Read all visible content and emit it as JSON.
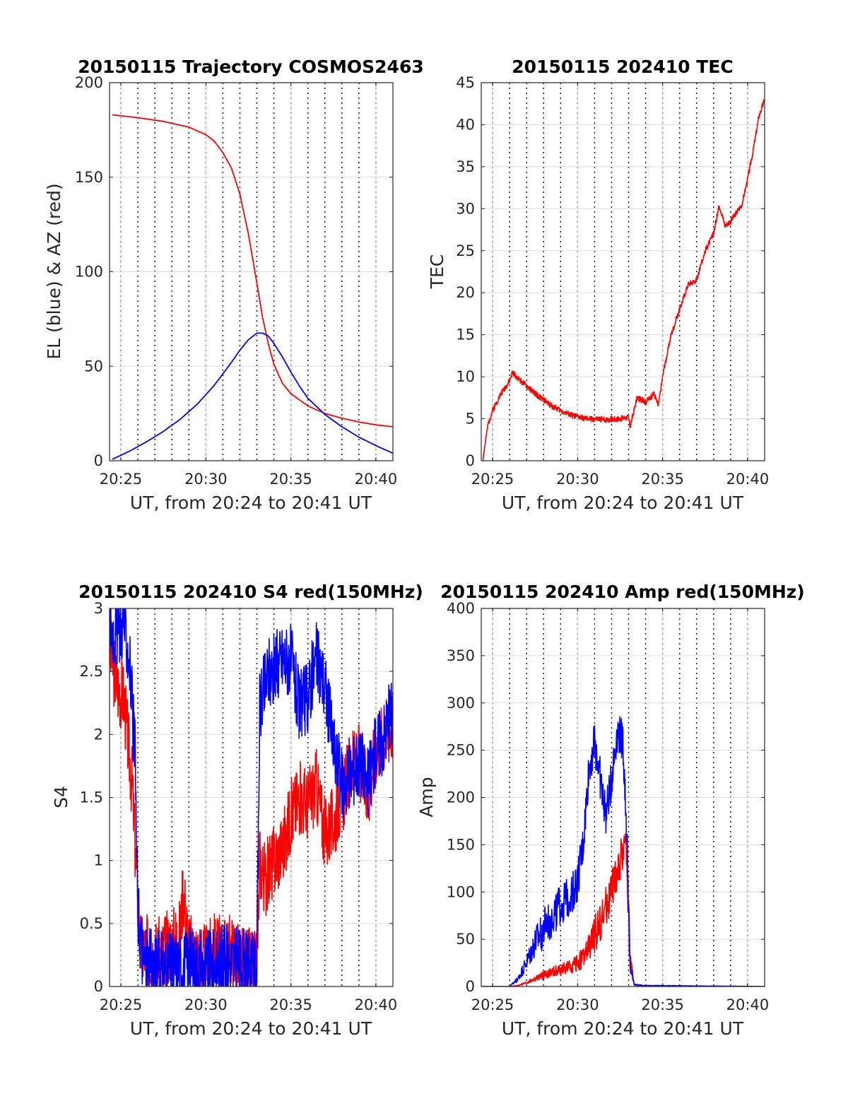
{
  "colors": {
    "el": "#0000ff",
    "az": "#ff0000",
    "tec": "#ff0000",
    "red_series": "#ff0000",
    "blue_series": "#0000ff",
    "axis": "#262626"
  },
  "chart_data": [
    {
      "type": "line",
      "title": "20150115 Trajectory COSMOS2463",
      "xlabel": "UT, from 20:24 to 20:41 UT",
      "ylabel": "EL (blue) & AZ (red)",
      "xlim": [
        "20:24:20",
        "20:41:00"
      ],
      "ylim": [
        0,
        200
      ],
      "xticks": [
        "20:25",
        "20:30",
        "20:35",
        "20:40"
      ],
      "yticks": [
        0,
        50,
        100,
        150,
        200
      ],
      "grid": {
        "major": true,
        "x_minor_dotted_every_min": true
      },
      "series": [
        {
          "name": "AZ",
          "color": "red",
          "x": [
            "20:24:30",
            "20:26:00",
            "20:27:30",
            "20:29:00",
            "20:30:00",
            "20:30:30",
            "20:31:00",
            "20:31:30",
            "20:32:00",
            "20:32:30",
            "20:33:00",
            "20:33:20",
            "20:33:40",
            "20:34:00",
            "20:34:30",
            "20:35:00",
            "20:36:00",
            "20:37:00",
            "20:38:00",
            "20:39:00",
            "20:40:00",
            "20:41:00"
          ],
          "values": [
            183,
            181.5,
            179.5,
            176.5,
            172.5,
            169,
            163,
            155,
            141,
            120,
            94,
            76,
            62,
            51,
            41,
            35.5,
            29,
            25,
            22.5,
            20.5,
            19,
            18
          ]
        },
        {
          "name": "EL",
          "color": "blue",
          "x": [
            "20:24:30",
            "20:25:30",
            "20:26:30",
            "20:27:30",
            "20:28:30",
            "20:29:30",
            "20:30:30",
            "20:31:30",
            "20:32:00",
            "20:32:30",
            "20:33:00",
            "20:33:20",
            "20:33:40",
            "20:34:00",
            "20:34:30",
            "20:35:00",
            "20:35:30",
            "20:36:00",
            "20:37:00",
            "20:38:00",
            "20:39:00",
            "20:40:00",
            "20:41:00"
          ],
          "values": [
            0.8,
            5,
            10,
            15.5,
            22,
            30,
            40,
            52,
            58.5,
            64,
            67.5,
            67.5,
            66,
            62,
            55,
            47,
            39.5,
            33,
            24.5,
            18,
            12.5,
            8,
            4
          ]
        }
      ]
    },
    {
      "type": "line",
      "title": "20150115 202410 TEC",
      "xlabel": "UT, from 20:24 to 20:41 UT",
      "ylabel": "TEC",
      "xlim": [
        "20:24:20",
        "20:41:00"
      ],
      "ylim": [
        0,
        45
      ],
      "xticks": [
        "20:25",
        "20:30",
        "20:35",
        "20:40"
      ],
      "yticks": [
        0,
        5,
        10,
        15,
        20,
        25,
        30,
        35,
        40,
        45
      ],
      "grid": {
        "major": true,
        "x_minor_dotted_every_min": true
      },
      "series": [
        {
          "name": "TEC",
          "color": "red",
          "x": [
            "20:24:25",
            "20:24:45",
            "20:25:00",
            "20:25:30",
            "20:26:00",
            "20:26:10",
            "20:26:40",
            "20:27:30",
            "20:28:30",
            "20:29:30",
            "20:30:30",
            "20:31:30",
            "20:32:30",
            "20:33:00",
            "20:33:05",
            "20:33:30",
            "20:34:00",
            "20:34:30",
            "20:34:45",
            "20:35:00",
            "20:35:30",
            "20:36:00",
            "20:36:30",
            "20:37:00",
            "20:37:30",
            "20:38:00",
            "20:38:20",
            "20:38:40",
            "20:39:00",
            "20:39:20",
            "20:39:40",
            "20:40:00",
            "20:40:20",
            "20:40:40",
            "20:41:00"
          ],
          "values": [
            0,
            4.5,
            6,
            8,
            9.5,
            10.5,
            9.5,
            8,
            6.5,
            5.5,
            5,
            4.9,
            5,
            5.2,
            4,
            7.5,
            7,
            8,
            6.5,
            10,
            15,
            18,
            21,
            21.5,
            25,
            27,
            30.5,
            28,
            28.5,
            29.5,
            30.5,
            33.5,
            37,
            41,
            43
          ]
        }
      ]
    },
    {
      "type": "line",
      "title": "20150115 202410 S4 red(150MHz)",
      "xlabel": "UT, from 20:24 to 20:41 UT",
      "ylabel": "S4",
      "xlim": [
        "20:24:20",
        "20:41:00"
      ],
      "ylim": [
        0,
        3
      ],
      "xticks": [
        "20:25",
        "20:30",
        "20:35",
        "20:40"
      ],
      "yticks": [
        0,
        0.5,
        1,
        1.5,
        2,
        2.5,
        3
      ],
      "grid": {
        "major": true,
        "x_minor_dotted_every_min": true
      },
      "series": [
        {
          "name": "red (150MHz)",
          "color": "red",
          "x": [
            "20:24:20",
            "20:24:45",
            "20:25:10",
            "20:25:40",
            "20:25:55",
            "20:26:10",
            "20:26:40",
            "20:27:20",
            "20:28:00",
            "20:28:30",
            "20:28:40",
            "20:29:00",
            "20:29:30",
            "20:30:00",
            "20:30:30",
            "20:31:00",
            "20:31:30",
            "20:32:00",
            "20:32:30",
            "20:33:00",
            "20:33:10",
            "20:33:30",
            "20:34:00",
            "20:34:30",
            "20:35:00",
            "20:35:30",
            "20:36:00",
            "20:36:30",
            "20:37:00",
            "20:37:30",
            "20:38:00",
            "20:38:30",
            "20:39:00",
            "20:39:30",
            "20:40:00",
            "20:40:30",
            "20:41:00"
          ],
          "values": [
            2.7,
            2.4,
            2.3,
            1.6,
            0.9,
            0.3,
            0.28,
            0.25,
            0.35,
            0.42,
            0.8,
            0.3,
            0.25,
            0.2,
            0.3,
            0.25,
            0.3,
            0.2,
            0.18,
            0.15,
            1.0,
            0.85,
            1.0,
            1.1,
            1.35,
            1.5,
            1.45,
            1.6,
            1.2,
            1.3,
            1.5,
            1.7,
            1.8,
            1.5,
            1.9,
            2.0,
            2.1
          ]
        },
        {
          "name": "blue",
          "color": "blue",
          "x": [
            "20:24:20",
            "20:24:45",
            "20:25:10",
            "20:25:30",
            "20:25:50",
            "20:26:00",
            "20:26:20",
            "20:27:00",
            "20:28:00",
            "20:29:00",
            "20:30:00",
            "20:31:00",
            "20:32:00",
            "20:33:00",
            "20:33:10",
            "20:33:40",
            "20:34:00",
            "20:34:30",
            "20:35:00",
            "20:35:30",
            "20:36:00",
            "20:36:30",
            "20:37:00",
            "20:37:30",
            "20:38:00",
            "20:38:30",
            "20:39:00",
            "20:39:30",
            "20:40:00",
            "20:40:30",
            "20:41:00"
          ],
          "values": [
            2.9,
            2.8,
            2.9,
            2.6,
            1.8,
            0.6,
            0.2,
            0.15,
            0.15,
            0.18,
            0.15,
            0.2,
            0.18,
            0.12,
            2.2,
            2.5,
            2.5,
            2.6,
            2.6,
            2.2,
            2.3,
            2.6,
            2.4,
            1.9,
            1.6,
            1.7,
            1.8,
            1.6,
            1.9,
            2.0,
            2.2
          ]
        }
      ]
    },
    {
      "type": "line",
      "title": "20150115 202410 Amp red(150MHz)",
      "xlabel": "UT, from 20:24 to 20:41 UT",
      "ylabel": "Amp",
      "xlim": [
        "20:24:20",
        "20:41:00"
      ],
      "ylim": [
        0,
        400
      ],
      "xticks": [
        "20:25",
        "20:30",
        "20:35",
        "20:40"
      ],
      "yticks": [
        0,
        50,
        100,
        150,
        200,
        250,
        300,
        350,
        400
      ],
      "grid": {
        "major": true,
        "x_minor_dotted_every_min": true
      },
      "series": [
        {
          "name": "red (150MHz)",
          "color": "red",
          "x": [
            "20:24:20",
            "20:26:00",
            "20:26:30",
            "20:27:00",
            "20:27:30",
            "20:28:00",
            "20:28:30",
            "20:29:00",
            "20:29:30",
            "20:30:00",
            "20:30:30",
            "20:31:00",
            "20:31:30",
            "20:32:00",
            "20:32:30",
            "20:32:50",
            "20:33:05",
            "20:33:20",
            "20:34:00",
            "20:41:00"
          ],
          "values": [
            0,
            0,
            1,
            4,
            8,
            12,
            15,
            18,
            20,
            25,
            35,
            55,
            75,
            100,
            130,
            160,
            30,
            2,
            0,
            0
          ]
        },
        {
          "name": "blue",
          "color": "blue",
          "x": [
            "20:24:20",
            "20:26:00",
            "20:26:30",
            "20:27:00",
            "20:27:30",
            "20:28:00",
            "20:28:30",
            "20:29:00",
            "20:29:30",
            "20:30:00",
            "20:30:20",
            "20:30:40",
            "20:31:00",
            "20:31:20",
            "20:31:40",
            "20:32:00",
            "20:32:20",
            "20:32:40",
            "20:32:55",
            "20:33:05",
            "20:33:20",
            "20:34:00",
            "20:41:00"
          ],
          "values": [
            0,
            0,
            8,
            25,
            45,
            60,
            75,
            85,
            95,
            110,
            150,
            230,
            260,
            220,
            180,
            220,
            270,
            260,
            150,
            20,
            2,
            1,
            0
          ]
        }
      ]
    }
  ]
}
